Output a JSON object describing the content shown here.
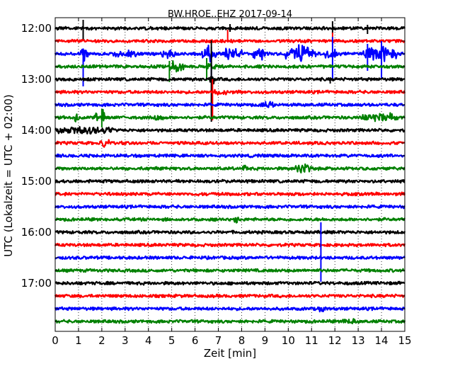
{
  "chart_data": {
    "type": "line",
    "title": "BW.HROE..EHZ 2017-09-14",
    "xlabel": "Zeit  [min]",
    "ylabel": "UTC (Lokalzeit = UTC + 02:00)",
    "xlim": [
      0,
      15
    ],
    "x_ticks": [
      0,
      1,
      2,
      3,
      4,
      5,
      6,
      7,
      8,
      9,
      10,
      11,
      12,
      13,
      14,
      15
    ],
    "y_tick_labels": [
      "12:00",
      "13:00",
      "14:00",
      "15:00",
      "16:00",
      "17:00"
    ],
    "trace_interval_min": 15,
    "grid": "vertical dotted at each minute",
    "trace_colors": [
      "#000000",
      "#ff0000",
      "#0000ff",
      "#008000"
    ],
    "traces": [
      {
        "start": "12:00",
        "color": "#000000"
      },
      {
        "start": "12:15",
        "color": "#ff0000"
      },
      {
        "start": "12:30",
        "color": "#0000ff"
      },
      {
        "start": "12:45",
        "color": "#008000"
      },
      {
        "start": "13:00",
        "color": "#000000"
      },
      {
        "start": "13:15",
        "color": "#ff0000"
      },
      {
        "start": "13:30",
        "color": "#0000ff"
      },
      {
        "start": "13:45",
        "color": "#008000"
      },
      {
        "start": "14:00",
        "color": "#000000"
      },
      {
        "start": "14:15",
        "color": "#ff0000"
      },
      {
        "start": "14:30",
        "color": "#0000ff"
      },
      {
        "start": "14:45",
        "color": "#008000"
      },
      {
        "start": "15:00",
        "color": "#000000"
      },
      {
        "start": "15:15",
        "color": "#ff0000"
      },
      {
        "start": "15:30",
        "color": "#0000ff"
      },
      {
        "start": "15:45",
        "color": "#008000"
      },
      {
        "start": "16:00",
        "color": "#000000"
      },
      {
        "start": "16:15",
        "color": "#ff0000"
      },
      {
        "start": "16:30",
        "color": "#0000ff"
      },
      {
        "start": "16:45",
        "color": "#008000"
      },
      {
        "start": "17:00",
        "color": "#000000"
      },
      {
        "start": "17:15",
        "color": "#ff0000"
      },
      {
        "start": "17:30",
        "color": "#0000ff"
      },
      {
        "start": "17:45",
        "color": "#008000"
      }
    ]
  }
}
